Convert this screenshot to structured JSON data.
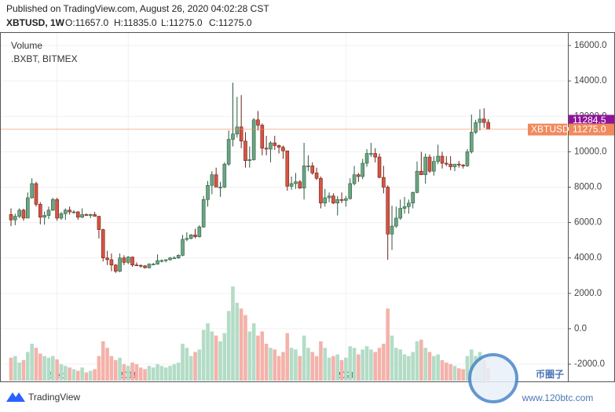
{
  "header": {
    "published": "Published on TradingView.com, August 26, 2020 04:02:28 CST",
    "symbol": "XBTUSD, 1W",
    "open": "O:11657.0",
    "high": "H:11835.0",
    "low": "L:11275.0",
    "close": "C:11275.0"
  },
  "chart_data": {
    "type": "candlestick",
    "volume_title": "Volume",
    "index_title": ".BXBT, BITMEX",
    "up_color": "#6ba583",
    "down_color": "#d75442",
    "up_volume_color": "#b3dcc6",
    "down_volume_color": "#f4b2aa",
    "ylim": [
      -2930,
      16710
    ],
    "yticks": [
      {
        "value": -2000,
        "label": "-2000.0"
      },
      {
        "value": 0,
        "label": "0.0"
      },
      {
        "value": 2000,
        "label": "2000.0"
      },
      {
        "value": 4000,
        "label": "4000.0"
      },
      {
        "value": 6000,
        "label": "6000.0"
      },
      {
        "value": 8000,
        "label": "8000.0"
      },
      {
        "value": 10000,
        "label": "10000.0"
      },
      {
        "value": 12000,
        "label": "12000.0"
      },
      {
        "value": 14000,
        "label": "14000.0"
      },
      {
        "value": 16000,
        "label": "16000.0"
      }
    ],
    "xticks": [
      {
        "value": 11,
        "label": "Sep"
      },
      {
        "value": 28,
        "label": "2019"
      },
      {
        "value": 80,
        "label": "2020"
      }
    ],
    "grid": true,
    "last_price": {
      "name": "XBTUSD",
      "value": 11275,
      "label": "11275.0",
      "color": "#f08a5d"
    },
    "index_price": {
      "value": 11284.5,
      "label": "11284.5",
      "color": "#8e1599"
    },
    "ohlc": [
      [
        6450,
        6800,
        5800,
        6150
      ],
      [
        6150,
        6500,
        5850,
        6350
      ],
      [
        6350,
        6800,
        6250,
        6700
      ],
      [
        6700,
        6780,
        6100,
        6250
      ],
      [
        6250,
        7700,
        6250,
        7400
      ],
      [
        7400,
        8500,
        7350,
        8200
      ],
      [
        8200,
        8300,
        6900,
        7030
      ],
      [
        7030,
        7150,
        5900,
        6300
      ],
      [
        6300,
        6620,
        5880,
        6400
      ],
      [
        6400,
        6900,
        6200,
        6700
      ],
      [
        6700,
        7400,
        6650,
        7300
      ],
      [
        7300,
        7400,
        6100,
        6250
      ],
      [
        6250,
        6600,
        6150,
        6500
      ],
      [
        6500,
        6800,
        6150,
        6700
      ],
      [
        6700,
        6900,
        6450,
        6600
      ],
      [
        6600,
        6700,
        6500,
        6600
      ],
      [
        6600,
        6650,
        6150,
        6300
      ],
      [
        6300,
        6800,
        6250,
        6450
      ],
      [
        6450,
        6520,
        6380,
        6400
      ],
      [
        6400,
        6500,
        6250,
        6450
      ],
      [
        6450,
        6600,
        6350,
        6350
      ],
      [
        6350,
        6380,
        5100,
        5600
      ],
      [
        5600,
        5650,
        3800,
        4000
      ],
      [
        4000,
        4400,
        3600,
        3900
      ],
      [
        3900,
        4250,
        3250,
        3600
      ],
      [
        3600,
        3650,
        3150,
        3250
      ],
      [
        3250,
        4250,
        3200,
        4000
      ],
      [
        4000,
        4150,
        3600,
        3750
      ],
      [
        3750,
        4100,
        3650,
        4050
      ],
      [
        4050,
        4080,
        3500,
        3600
      ],
      [
        3600,
        3750,
        3550,
        3580
      ],
      [
        3580,
        3630,
        3450,
        3550
      ],
      [
        3550,
        3600,
        3400,
        3450
      ],
      [
        3450,
        3700,
        3400,
        3650
      ],
      [
        3650,
        3720,
        3600,
        3650
      ],
      [
        3650,
        4200,
        3620,
        3850
      ],
      [
        3850,
        3920,
        3750,
        3850
      ],
      [
        3850,
        3920,
        3750,
        3900
      ],
      [
        3900,
        4050,
        3850,
        4000
      ],
      [
        4000,
        4100,
        3950,
        4000
      ],
      [
        4000,
        4200,
        3950,
        4150
      ],
      [
        4150,
        5300,
        4100,
        5050
      ],
      [
        5050,
        5450,
        4950,
        5100
      ],
      [
        5100,
        5350,
        5050,
        5300
      ],
      [
        5300,
        5650,
        5100,
        5200
      ],
      [
        5200,
        5850,
        5150,
        5750
      ],
      [
        5750,
        7500,
        5700,
        7300
      ],
      [
        7300,
        8350,
        6900,
        8100
      ],
      [
        8100,
        8900,
        7600,
        8700
      ],
      [
        8700,
        9100,
        8000,
        8000
      ],
      [
        8000,
        8300,
        7450,
        8000
      ],
      [
        8000,
        9400,
        7950,
        9300
      ],
      [
        9300,
        11200,
        9200,
        10700
      ],
      [
        10700,
        13900,
        10300,
        11000
      ],
      [
        11000,
        13100,
        10800,
        11400
      ],
      [
        11400,
        13200,
        10200,
        10600
      ],
      [
        10600,
        11100,
        9100,
        9500
      ],
      [
        9500,
        10300,
        9100,
        9550
      ],
      [
        9550,
        11900,
        9500,
        11800
      ],
      [
        11800,
        12300,
        11200,
        11500
      ],
      [
        11500,
        11600,
        9800,
        10200
      ],
      [
        10200,
        10900,
        9800,
        10150
      ],
      [
        10150,
        10600,
        9400,
        10500
      ],
      [
        10500,
        10900,
        10100,
        10350
      ],
      [
        10350,
        10400,
        9900,
        10250
      ],
      [
        10250,
        10350,
        9600,
        10050
      ],
      [
        10050,
        10050,
        7800,
        8050
      ],
      [
        8050,
        8600,
        7850,
        8200
      ],
      [
        8200,
        8800,
        7900,
        8300
      ],
      [
        8300,
        8400,
        7900,
        7950
      ],
      [
        7950,
        10500,
        7300,
        9200
      ],
      [
        9200,
        9800,
        8900,
        9200
      ],
      [
        9200,
        9400,
        8700,
        8800
      ],
      [
        8800,
        9100,
        8400,
        8500
      ],
      [
        8500,
        8600,
        6800,
        7100
      ],
      [
        7100,
        7900,
        6900,
        7400
      ],
      [
        7400,
        7700,
        7150,
        7500
      ],
      [
        7500,
        7650,
        7050,
        7100
      ],
      [
        7100,
        7500,
        6400,
        7300
      ],
      [
        7300,
        7700,
        7100,
        7250
      ],
      [
        7250,
        7500,
        6900,
        7350
      ],
      [
        7350,
        8500,
        7300,
        8200
      ],
      [
        8200,
        9200,
        8100,
        8700
      ],
      [
        8700,
        8800,
        8300,
        8600
      ],
      [
        8600,
        9600,
        8450,
        9350
      ],
      [
        9350,
        10150,
        9150,
        9900
      ],
      [
        9900,
        10500,
        9700,
        9900
      ],
      [
        9900,
        10200,
        9400,
        9700
      ],
      [
        9700,
        9900,
        8500,
        8550
      ],
      [
        8550,
        9200,
        7650,
        8000
      ],
      [
        8000,
        8100,
        3900,
        5350
      ],
      [
        5350,
        6950,
        4450,
        5800
      ],
      [
        5800,
        6900,
        5700,
        6250
      ],
      [
        6250,
        7300,
        6150,
        6800
      ],
      [
        6800,
        7450,
        6500,
        6900
      ],
      [
        6900,
        7300,
        6500,
        7100
      ],
      [
        7100,
        7750,
        6800,
        7700
      ],
      [
        7700,
        9450,
        7650,
        8900
      ],
      [
        8900,
        10000,
        8700,
        8700
      ],
      [
        8700,
        9900,
        8200,
        9700
      ],
      [
        9700,
        9850,
        8800,
        8900
      ],
      [
        8900,
        9750,
        8650,
        9450
      ],
      [
        9450,
        10400,
        9300,
        9750
      ],
      [
        9750,
        10000,
        9050,
        9350
      ],
      [
        9350,
        9750,
        9200,
        9300
      ],
      [
        9300,
        9750,
        8950,
        9150
      ],
      [
        9150,
        9300,
        8900,
        9300
      ],
      [
        9300,
        9480,
        9100,
        9250
      ],
      [
        9250,
        9300,
        9050,
        9200
      ],
      [
        9200,
        10150,
        9150,
        10000
      ],
      [
        10000,
        12100,
        9900,
        11100
      ],
      [
        11100,
        11800,
        11000,
        11650
      ],
      [
        11650,
        12400,
        11200,
        11850
      ],
      [
        11850,
        12450,
        11350,
        11650
      ],
      [
        11657,
        11835,
        11275,
        11275
      ]
    ],
    "volume": [
      28,
      30,
      22,
      25,
      35,
      45,
      40,
      33,
      30,
      28,
      30,
      26,
      20,
      18,
      16,
      14,
      12,
      16,
      10,
      12,
      14,
      30,
      48,
      40,
      30,
      25,
      28,
      20,
      18,
      22,
      20,
      16,
      14,
      18,
      16,
      20,
      18,
      16,
      18,
      20,
      22,
      45,
      40,
      30,
      35,
      38,
      62,
      70,
      60,
      55,
      48,
      58,
      85,
      115,
      95,
      88,
      80,
      60,
      70,
      55,
      60,
      45,
      40,
      38,
      30,
      35,
      58,
      40,
      38,
      30,
      55,
      40,
      35,
      30,
      48,
      40,
      28,
      30,
      32,
      25,
      28,
      42,
      40,
      32,
      38,
      42,
      38,
      35,
      40,
      45,
      88,
      55,
      40,
      38,
      32,
      30,
      35,
      48,
      50,
      40,
      35,
      30,
      32,
      25,
      22,
      20,
      18,
      15,
      14,
      30,
      38,
      30,
      35,
      25,
      15
    ]
  },
  "footer": {
    "brand": "TradingView"
  },
  "watermark": {
    "text": "币圈子",
    "url": "www.120btc.com"
  }
}
